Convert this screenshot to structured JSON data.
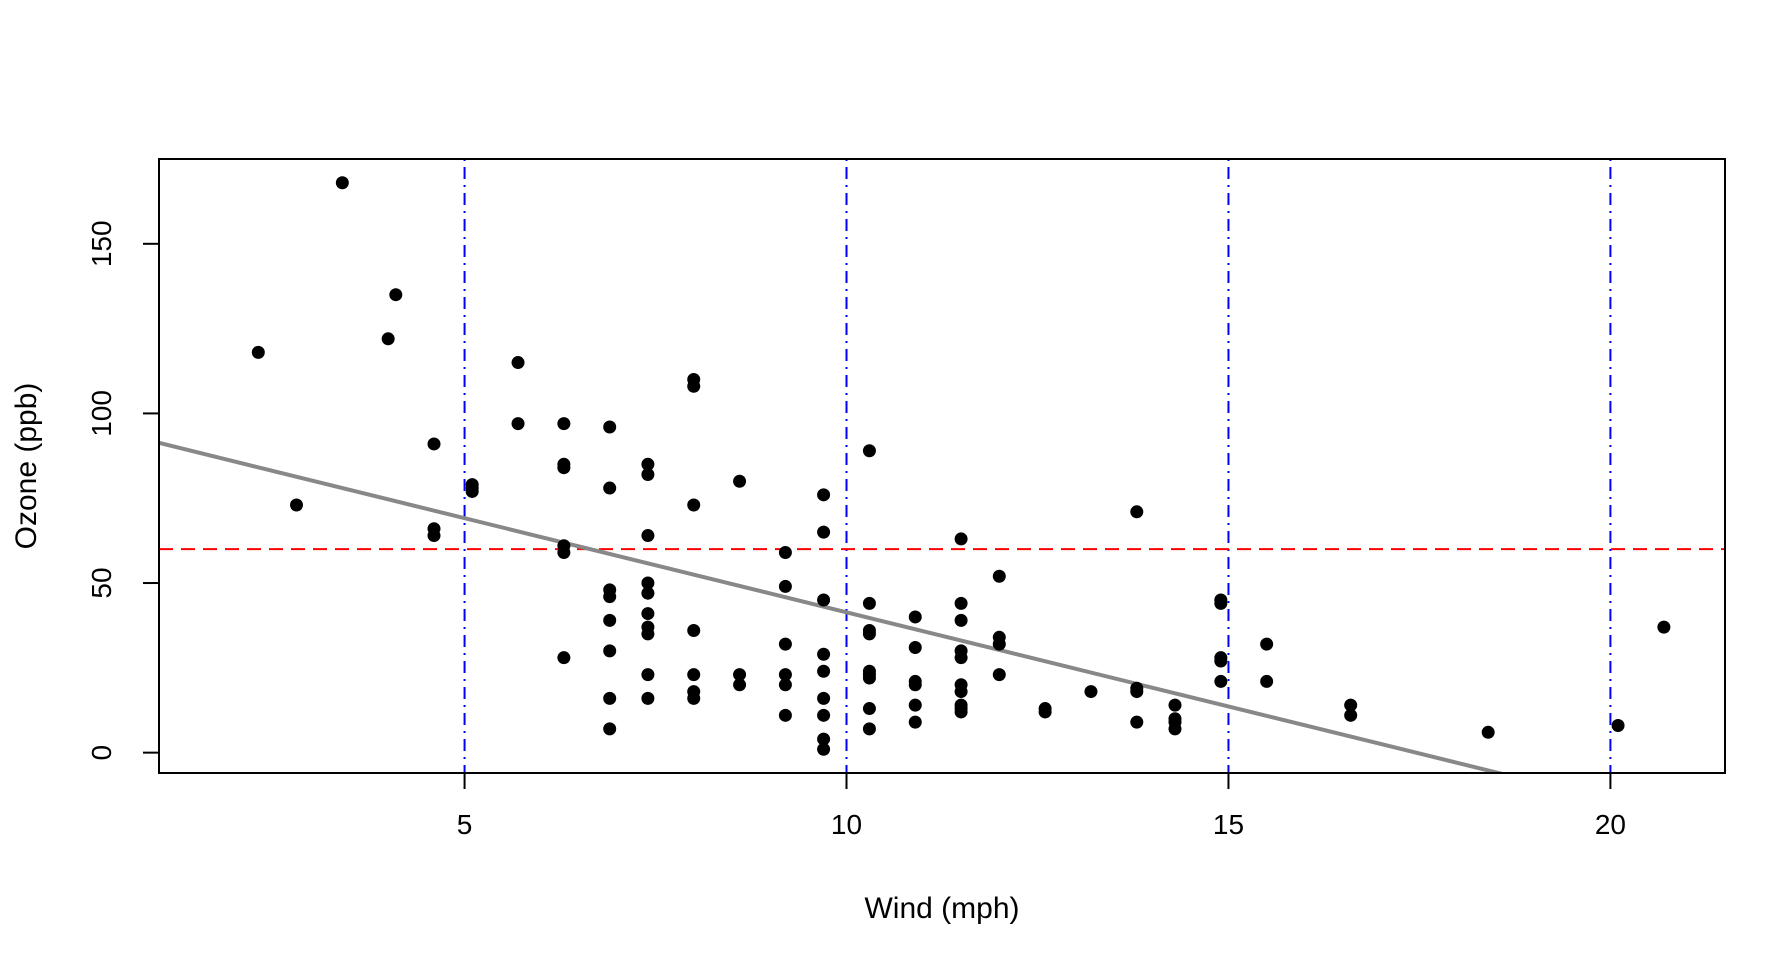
{
  "chart_data": {
    "type": "scatter",
    "title": "",
    "xlabel": "Wind (mph)",
    "ylabel": "Ozone (ppb)",
    "xlim": [
      1.0,
      21.5
    ],
    "ylim": [
      -6,
      175
    ],
    "xticks": [
      5,
      10,
      15,
      20
    ],
    "yticks": [
      0,
      50,
      100,
      150
    ],
    "grid": false,
    "legend": "none",
    "colors": {
      "points": "#000000",
      "regression_line": "#888888",
      "hline": "#ff0000",
      "vlines": "#0000ff",
      "frame": "#000000"
    },
    "series": [
      {
        "points": [
          [
            2.3,
            118
          ],
          [
            2.8,
            73
          ],
          [
            3.4,
            168
          ],
          [
            4.0,
            122
          ],
          [
            4.1,
            135
          ],
          [
            4.6,
            91
          ],
          [
            4.6,
            66
          ],
          [
            4.6,
            64
          ],
          [
            5.1,
            79
          ],
          [
            5.1,
            78
          ],
          [
            5.1,
            77
          ],
          [
            5.7,
            115
          ],
          [
            5.7,
            97
          ],
          [
            6.3,
            97
          ],
          [
            6.3,
            85
          ],
          [
            6.3,
            84
          ],
          [
            6.3,
            61
          ],
          [
            6.3,
            59
          ],
          [
            6.3,
            28
          ],
          [
            6.9,
            96
          ],
          [
            6.9,
            78
          ],
          [
            6.9,
            48
          ],
          [
            6.9,
            46
          ],
          [
            6.9,
            39
          ],
          [
            6.9,
            30
          ],
          [
            6.9,
            16
          ],
          [
            6.9,
            7
          ],
          [
            7.4,
            85
          ],
          [
            7.4,
            82
          ],
          [
            7.4,
            64
          ],
          [
            7.4,
            50
          ],
          [
            7.4,
            47
          ],
          [
            7.4,
            41
          ],
          [
            7.4,
            37
          ],
          [
            7.4,
            35
          ],
          [
            7.4,
            23
          ],
          [
            7.4,
            16
          ],
          [
            8.0,
            110
          ],
          [
            8.0,
            108
          ],
          [
            8.0,
            73
          ],
          [
            8.0,
            36
          ],
          [
            8.0,
            23
          ],
          [
            8.0,
            18
          ],
          [
            8.0,
            16
          ],
          [
            8.6,
            80
          ],
          [
            8.6,
            23
          ],
          [
            8.6,
            20
          ],
          [
            9.2,
            59
          ],
          [
            9.2,
            49
          ],
          [
            9.2,
            32
          ],
          [
            9.2,
            23
          ],
          [
            9.2,
            20
          ],
          [
            9.2,
            11
          ],
          [
            9.7,
            76
          ],
          [
            9.7,
            65
          ],
          [
            9.7,
            45
          ],
          [
            9.7,
            29
          ],
          [
            9.7,
            24
          ],
          [
            9.7,
            16
          ],
          [
            9.7,
            11
          ],
          [
            9.7,
            4
          ],
          [
            9.7,
            1
          ],
          [
            10.3,
            89
          ],
          [
            10.3,
            44
          ],
          [
            10.3,
            36
          ],
          [
            10.3,
            35
          ],
          [
            10.3,
            24
          ],
          [
            10.3,
            23
          ],
          [
            10.3,
            22
          ],
          [
            10.3,
            13
          ],
          [
            10.3,
            7
          ],
          [
            10.9,
            40
          ],
          [
            10.9,
            31
          ],
          [
            10.9,
            21
          ],
          [
            10.9,
            20
          ],
          [
            10.9,
            14
          ],
          [
            10.9,
            9
          ],
          [
            11.5,
            63
          ],
          [
            11.5,
            44
          ],
          [
            11.5,
            39
          ],
          [
            11.5,
            30
          ],
          [
            11.5,
            28
          ],
          [
            11.5,
            20
          ],
          [
            11.5,
            18
          ],
          [
            11.5,
            14
          ],
          [
            11.5,
            13
          ],
          [
            11.5,
            12
          ],
          [
            12.0,
            52
          ],
          [
            12.0,
            34
          ],
          [
            12.0,
            32
          ],
          [
            12.0,
            23
          ],
          [
            12.6,
            13
          ],
          [
            12.6,
            12
          ],
          [
            13.2,
            18
          ],
          [
            13.8,
            71
          ],
          [
            13.8,
            19
          ],
          [
            13.8,
            18
          ],
          [
            13.8,
            9
          ],
          [
            14.3,
            14
          ],
          [
            14.3,
            10
          ],
          [
            14.3,
            9
          ],
          [
            14.3,
            7
          ],
          [
            14.9,
            45
          ],
          [
            14.9,
            44
          ],
          [
            14.9,
            28
          ],
          [
            14.9,
            27
          ],
          [
            14.9,
            21
          ],
          [
            15.5,
            32
          ],
          [
            15.5,
            21
          ],
          [
            16.6,
            14
          ],
          [
            16.6,
            11
          ],
          [
            18.4,
            6
          ],
          [
            20.1,
            8
          ],
          [
            20.7,
            37
          ]
        ]
      }
    ],
    "regression_line": {
      "intercept": 96.87,
      "slope": -5.55
    },
    "reference_lines": {
      "hline_y": 60,
      "vlines_x": [
        5,
        10,
        15,
        20
      ]
    }
  }
}
